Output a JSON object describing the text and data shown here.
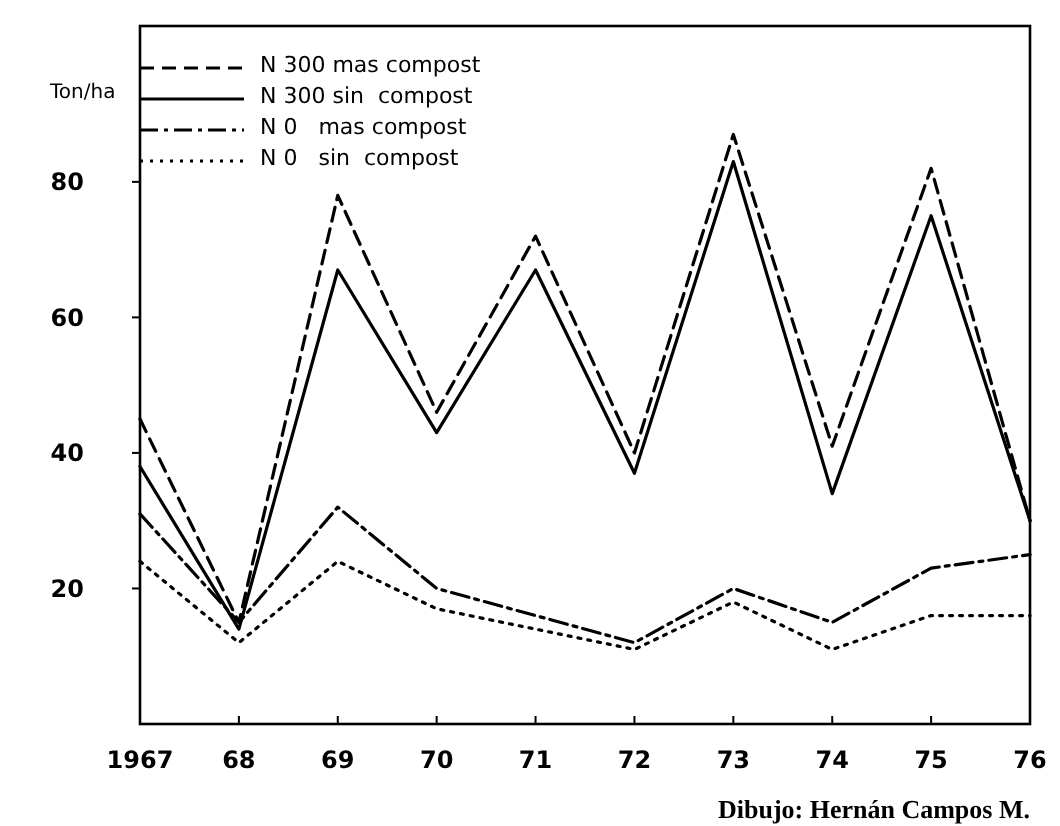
{
  "chart_data": {
    "type": "line",
    "ylabel": "Ton/ha",
    "x": [
      1967,
      1968,
      1969,
      1970,
      1971,
      1972,
      1973,
      1974,
      1975,
      1976
    ],
    "xlim": [
      1967,
      1976
    ],
    "xticks": [
      1967,
      {
        "value": 1968,
        "label": "68"
      },
      {
        "value": 1969,
        "label": "69"
      },
      {
        "value": 1970,
        "label": "70"
      },
      {
        "value": 1971,
        "label": "71"
      },
      {
        "value": 1972,
        "label": "72"
      },
      {
        "value": 1973,
        "label": "73"
      },
      {
        "value": 1974,
        "label": "74"
      },
      {
        "value": 1975,
        "label": "75"
      },
      {
        "value": 1976,
        "label": "76"
      }
    ],
    "ylim": [
      0,
      103
    ],
    "yticks": [
      20,
      40,
      60,
      80
    ],
    "grid": false,
    "legend": "top left",
    "series": [
      {
        "name": "N 300 mas compost",
        "color": "#000000",
        "line_style": "dashed",
        "values": [
          45,
          15,
          78,
          46,
          72,
          40,
          87,
          41,
          82,
          30
        ]
      },
      {
        "name": "N 300 sin  compost",
        "color": "#000000",
        "line_style": "solid",
        "values": [
          38,
          14,
          67,
          43,
          67,
          37,
          83,
          34,
          75,
          30
        ]
      },
      {
        "name": "N 0   mas compost",
        "color": "#000000",
        "line_style": "dashdot",
        "values": [
          31,
          15,
          32,
          20,
          16,
          12,
          20,
          15,
          23,
          25
        ]
      },
      {
        "name": "N 0   sin  compost",
        "color": "#000000",
        "line_style": "dotted",
        "values": [
          24,
          12,
          24,
          17,
          14,
          11,
          18,
          11,
          16,
          16
        ]
      }
    ],
    "annotations": [
      "Dibujo: Hernán Campos M."
    ]
  }
}
